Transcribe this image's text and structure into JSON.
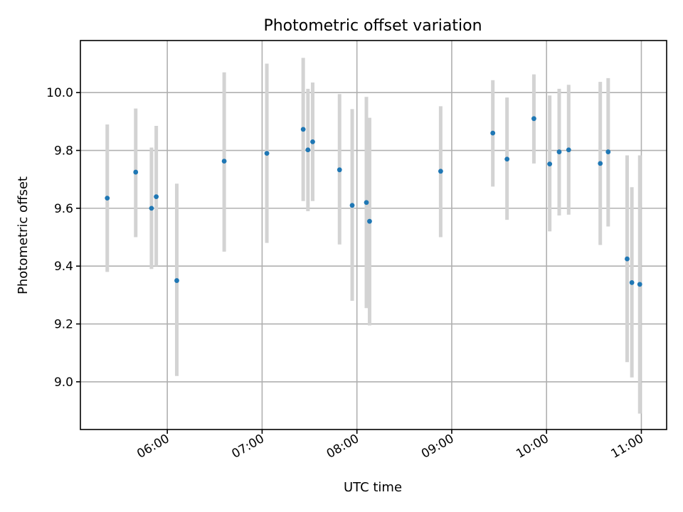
{
  "chart_data": {
    "type": "scatter",
    "title": "Photometric offset variation",
    "xlabel": "UTC time",
    "ylabel": "Photometric offset",
    "x_axis_kind": "time",
    "xlim": [
      "05:05",
      "11:16"
    ],
    "ylim": [
      8.835,
      10.18
    ],
    "x_ticks": [
      "06:00",
      "07:00",
      "08:00",
      "09:00",
      "10:00",
      "11:00"
    ],
    "y_ticks": [
      9.0,
      9.2,
      9.4,
      9.6,
      9.8,
      10.0
    ],
    "y_tick_labels": [
      "9.0",
      "9.2",
      "9.4",
      "9.6",
      "9.8",
      "10.0"
    ],
    "grid": true,
    "marker_color": "#1f77b4",
    "errorbar_color": "#d3d3d3",
    "points": [
      {
        "t": "05:22",
        "y": 9.635,
        "low": 9.38,
        "high": 9.89
      },
      {
        "t": "05:40",
        "y": 9.725,
        "low": 9.5,
        "high": 9.945
      },
      {
        "t": "05:50",
        "y": 9.6,
        "low": 9.39,
        "high": 9.81
      },
      {
        "t": "05:53",
        "y": 9.64,
        "low": 9.4,
        "high": 9.885
      },
      {
        "t": "06:06",
        "y": 9.35,
        "low": 9.02,
        "high": 9.685
      },
      {
        "t": "06:36",
        "y": 9.763,
        "low": 9.45,
        "high": 10.07
      },
      {
        "t": "07:03",
        "y": 9.79,
        "low": 9.48,
        "high": 10.1
      },
      {
        "t": "07:26",
        "y": 9.873,
        "low": 9.625,
        "high": 10.12
      },
      {
        "t": "07:29",
        "y": 9.802,
        "low": 9.59,
        "high": 10.013
      },
      {
        "t": "07:32",
        "y": 9.83,
        "low": 9.625,
        "high": 10.035
      },
      {
        "t": "07:49",
        "y": 9.733,
        "low": 9.475,
        "high": 9.995
      },
      {
        "t": "07:57",
        "y": 9.61,
        "low": 9.28,
        "high": 9.943
      },
      {
        "t": "08:06",
        "y": 9.62,
        "low": 9.255,
        "high": 9.985
      },
      {
        "t": "08:08",
        "y": 9.555,
        "low": 9.195,
        "high": 9.913
      },
      {
        "t": "08:53",
        "y": 9.728,
        "low": 9.5,
        "high": 9.953
      },
      {
        "t": "09:26",
        "y": 9.86,
        "low": 9.675,
        "high": 10.043
      },
      {
        "t": "09:35",
        "y": 9.77,
        "low": 9.56,
        "high": 9.983
      },
      {
        "t": "09:52",
        "y": 9.91,
        "low": 9.755,
        "high": 10.063
      },
      {
        "t": "10:02",
        "y": 9.753,
        "low": 9.52,
        "high": 9.99
      },
      {
        "t": "10:08",
        "y": 9.795,
        "low": 9.575,
        "high": 10.013
      },
      {
        "t": "10:14",
        "y": 9.802,
        "low": 9.578,
        "high": 10.027
      },
      {
        "t": "10:34",
        "y": 9.755,
        "low": 9.473,
        "high": 10.037
      },
      {
        "t": "10:39",
        "y": 9.795,
        "low": 9.537,
        "high": 10.05
      },
      {
        "t": "10:51",
        "y": 9.425,
        "low": 9.068,
        "high": 9.783
      },
      {
        "t": "10:54",
        "y": 9.343,
        "low": 9.015,
        "high": 9.673
      },
      {
        "t": "10:59",
        "y": 9.337,
        "low": 8.89,
        "high": 9.783
      }
    ]
  }
}
